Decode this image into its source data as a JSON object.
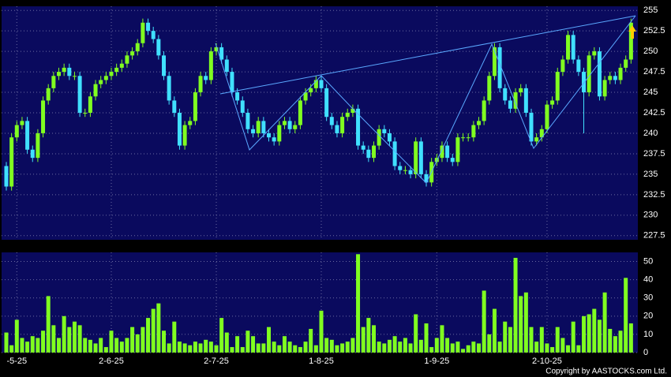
{
  "chart_data": [
    {
      "type": "candlestick",
      "up_color": "#80ff20",
      "down_color": "#40e0ff",
      "grid": true,
      "categories": [
        null,
        null,
        "-5-25",
        null,
        null,
        null,
        null,
        null,
        null,
        null,
        null,
        null,
        null,
        null,
        null,
        null,
        null,
        null,
        null,
        null,
        "2-6-25",
        null,
        null,
        null,
        null,
        null,
        null,
        null,
        null,
        null,
        null,
        null,
        null,
        null,
        null,
        null,
        null,
        null,
        null,
        null,
        "2-7-25",
        null,
        null,
        null,
        null,
        null,
        null,
        null,
        null,
        null,
        null,
        null,
        null,
        null,
        null,
        null,
        null,
        null,
        null,
        null,
        "1-8-25",
        null,
        null,
        null,
        null,
        null,
        null,
        null,
        null,
        null,
        null,
        null,
        null,
        null,
        null,
        null,
        null,
        null,
        null,
        null,
        null,
        null,
        "1-9-25",
        null,
        null,
        null,
        null,
        null,
        null,
        null,
        null,
        null,
        null,
        null,
        null,
        null,
        null,
        null,
        null,
        null,
        null,
        null,
        null,
        "2-10-25",
        null,
        null,
        null,
        null,
        null,
        null,
        null,
        null,
        null,
        null,
        null,
        null,
        null,
        null,
        null,
        null
      ],
      "open": [
        236,
        233.5,
        239.5,
        241,
        241.5,
        238,
        237,
        240,
        244,
        245.5,
        247,
        247.5,
        248,
        247,
        247,
        242.5,
        242.5,
        244.5,
        246,
        246.5,
        247,
        247.5,
        248,
        248.5,
        249.5,
        250,
        251,
        253.5,
        252.5,
        251.5,
        249.5,
        247,
        244,
        242.5,
        238.5,
        241,
        241.5,
        245,
        247,
        246.5,
        250,
        250.5,
        249,
        247.5,
        245,
        244,
        242.5,
        240.5,
        240,
        241.5,
        240,
        239.5,
        239,
        241,
        241.5,
        240.5,
        241,
        244,
        245,
        245.5,
        246.5,
        245.5,
        242,
        241,
        240,
        242,
        242.5,
        243,
        238.5,
        238,
        237,
        238.5,
        240.5,
        240,
        239,
        236,
        235.5,
        235.5,
        235,
        239,
        235,
        234,
        236.5,
        237,
        238.5,
        237,
        236.5,
        239.5,
        239.5,
        239.5,
        241,
        241.5,
        244,
        247,
        250.5,
        245.5,
        244,
        243,
        245,
        245.5,
        242.5,
        239,
        239.5,
        240.5,
        243.5,
        244,
        247.5,
        249,
        252,
        249,
        247.5,
        245,
        249.5,
        250,
        244.5,
        246.5,
        247,
        246.5,
        248,
        249
      ],
      "high": [
        236.5,
        240,
        241.5,
        242,
        242,
        238.5,
        240.5,
        244.5,
        246,
        247.5,
        248,
        248.5,
        248.5,
        247.5,
        247.5,
        243,
        245,
        246.5,
        247,
        247.5,
        248,
        248.5,
        249,
        250,
        250.5,
        251.5,
        254,
        254,
        253,
        252,
        250,
        247.5,
        244.5,
        243,
        241.5,
        242,
        245.5,
        247.5,
        247.5,
        250.5,
        251,
        251,
        249.5,
        248,
        245.5,
        244.5,
        243,
        241,
        242,
        242,
        240.5,
        240,
        241.5,
        242,
        242,
        241.5,
        244.5,
        245.5,
        246,
        247,
        247,
        246,
        242.5,
        241.5,
        242.5,
        243,
        243.5,
        243.5,
        239,
        238.5,
        239,
        241,
        241,
        240.5,
        239.5,
        236.5,
        236,
        236,
        239.5,
        239.5,
        235.5,
        237,
        237.5,
        239,
        239,
        237.5,
        240,
        240,
        240,
        241.5,
        242,
        244.5,
        247.5,
        251,
        251,
        246,
        244.5,
        245.5,
        246,
        246,
        243,
        240,
        241,
        244,
        244.5,
        248,
        249.5,
        252.5,
        252.5,
        249.5,
        248,
        250,
        250.5,
        250.5,
        247,
        247.5,
        247.5,
        248.5,
        249.5,
        254
      ],
      "low": [
        233,
        233,
        239,
        240.5,
        237.5,
        236.5,
        236.5,
        239.5,
        243.5,
        245,
        246.5,
        247,
        246.5,
        246.5,
        242,
        242,
        242,
        244,
        245.5,
        246,
        246.5,
        247,
        247.5,
        248,
        249,
        249.5,
        250.5,
        252,
        251,
        249,
        246.5,
        243.5,
        242,
        238,
        238,
        240.5,
        241,
        244.5,
        246,
        246,
        249.5,
        248.5,
        247,
        244.5,
        243.5,
        242,
        240,
        239.5,
        239.5,
        239.5,
        239,
        238.5,
        238.5,
        240.5,
        240,
        240,
        240.5,
        243.5,
        244.5,
        245,
        245,
        241.5,
        240.5,
        239.5,
        239.5,
        241.5,
        242,
        238,
        237.5,
        236.5,
        236.5,
        238,
        239.5,
        238.5,
        235.5,
        235,
        235,
        234.5,
        234.5,
        234.5,
        233.5,
        233.5,
        236,
        236.5,
        236.5,
        236,
        236,
        239,
        239,
        239,
        240.5,
        241,
        243.5,
        246.5,
        245,
        243.5,
        242.5,
        242.5,
        244.5,
        242,
        238.5,
        238.5,
        239,
        240,
        243,
        243.5,
        247,
        248.5,
        248.5,
        247,
        240,
        244.5,
        249,
        244,
        244,
        246,
        246,
        246,
        247.5,
        248.5
      ],
      "close": [
        233.5,
        239.5,
        241,
        241.5,
        238,
        237,
        240,
        244,
        245.5,
        247,
        247.5,
        248,
        247,
        247,
        242.5,
        242.5,
        244.5,
        246,
        246.5,
        247,
        247.5,
        248,
        248.5,
        249.5,
        250,
        251,
        253.5,
        252.5,
        251.5,
        249.5,
        247,
        244,
        242.5,
        238.5,
        241,
        241.5,
        245,
        247,
        246.5,
        250,
        250.5,
        249,
        247.5,
        245,
        244,
        242.5,
        240.5,
        240,
        241.5,
        240,
        239.5,
        239,
        241,
        241.5,
        240.5,
        241,
        244,
        245,
        245.5,
        246.5,
        245.5,
        242,
        241,
        240,
        242,
        242.5,
        243,
        238.5,
        238,
        237,
        238.5,
        240.5,
        240,
        239,
        236,
        235.5,
        235.5,
        235,
        239,
        235,
        234,
        236.5,
        237,
        238.5,
        237,
        236.5,
        239.5,
        239.5,
        239.5,
        241,
        241.5,
        244,
        247,
        250.5,
        245.5,
        244,
        243,
        245,
        245.5,
        242.5,
        239,
        239.5,
        240.5,
        243.5,
        244,
        247.5,
        249,
        252,
        249,
        247.5,
        245,
        249.5,
        250,
        244.5,
        246.5,
        247,
        246.5,
        248,
        249,
        253.5
      ],
      "ylim": [
        227,
        255.5
      ],
      "yticks": [
        227.5,
        230,
        232.5,
        235,
        237.5,
        240,
        242.5,
        245,
        247.5,
        250,
        252.5,
        255
      ]
    },
    {
      "type": "bar",
      "color": "#80ff20",
      "grid": true,
      "values": [
        11,
        4,
        18,
        8,
        6,
        9,
        8,
        12,
        31,
        15,
        8,
        20,
        14,
        17,
        15,
        8,
        7,
        5,
        8,
        3,
        12,
        8,
        6,
        8,
        14,
        10,
        14,
        19,
        24,
        27,
        12,
        5,
        17,
        6,
        5,
        4,
        6,
        5,
        7,
        6,
        4,
        19,
        11,
        3,
        9,
        3,
        12,
        9,
        5,
        5,
        14,
        6,
        4,
        9,
        6,
        4,
        3,
        6,
        13,
        4,
        23,
        8,
        7,
        4,
        5,
        6,
        8,
        54,
        14,
        19,
        15,
        6,
        5,
        7,
        9,
        6,
        8,
        5,
        21,
        7,
        16,
        3,
        8,
        15,
        8,
        5,
        6,
        2,
        4,
        6,
        5,
        34,
        10,
        24,
        6,
        17,
        14,
        52,
        31,
        33,
        14,
        6,
        14,
        5,
        3,
        14,
        8,
        4,
        17,
        4,
        20,
        21,
        24,
        18,
        33,
        13,
        9,
        12,
        41,
        16
      ],
      "ylim": [
        0,
        55
      ],
      "yticks": [
        0,
        10,
        20,
        30,
        40,
        50
      ]
    }
  ],
  "footer": {
    "copyright": "Copyright by AASTOCKS.com Ltd."
  }
}
